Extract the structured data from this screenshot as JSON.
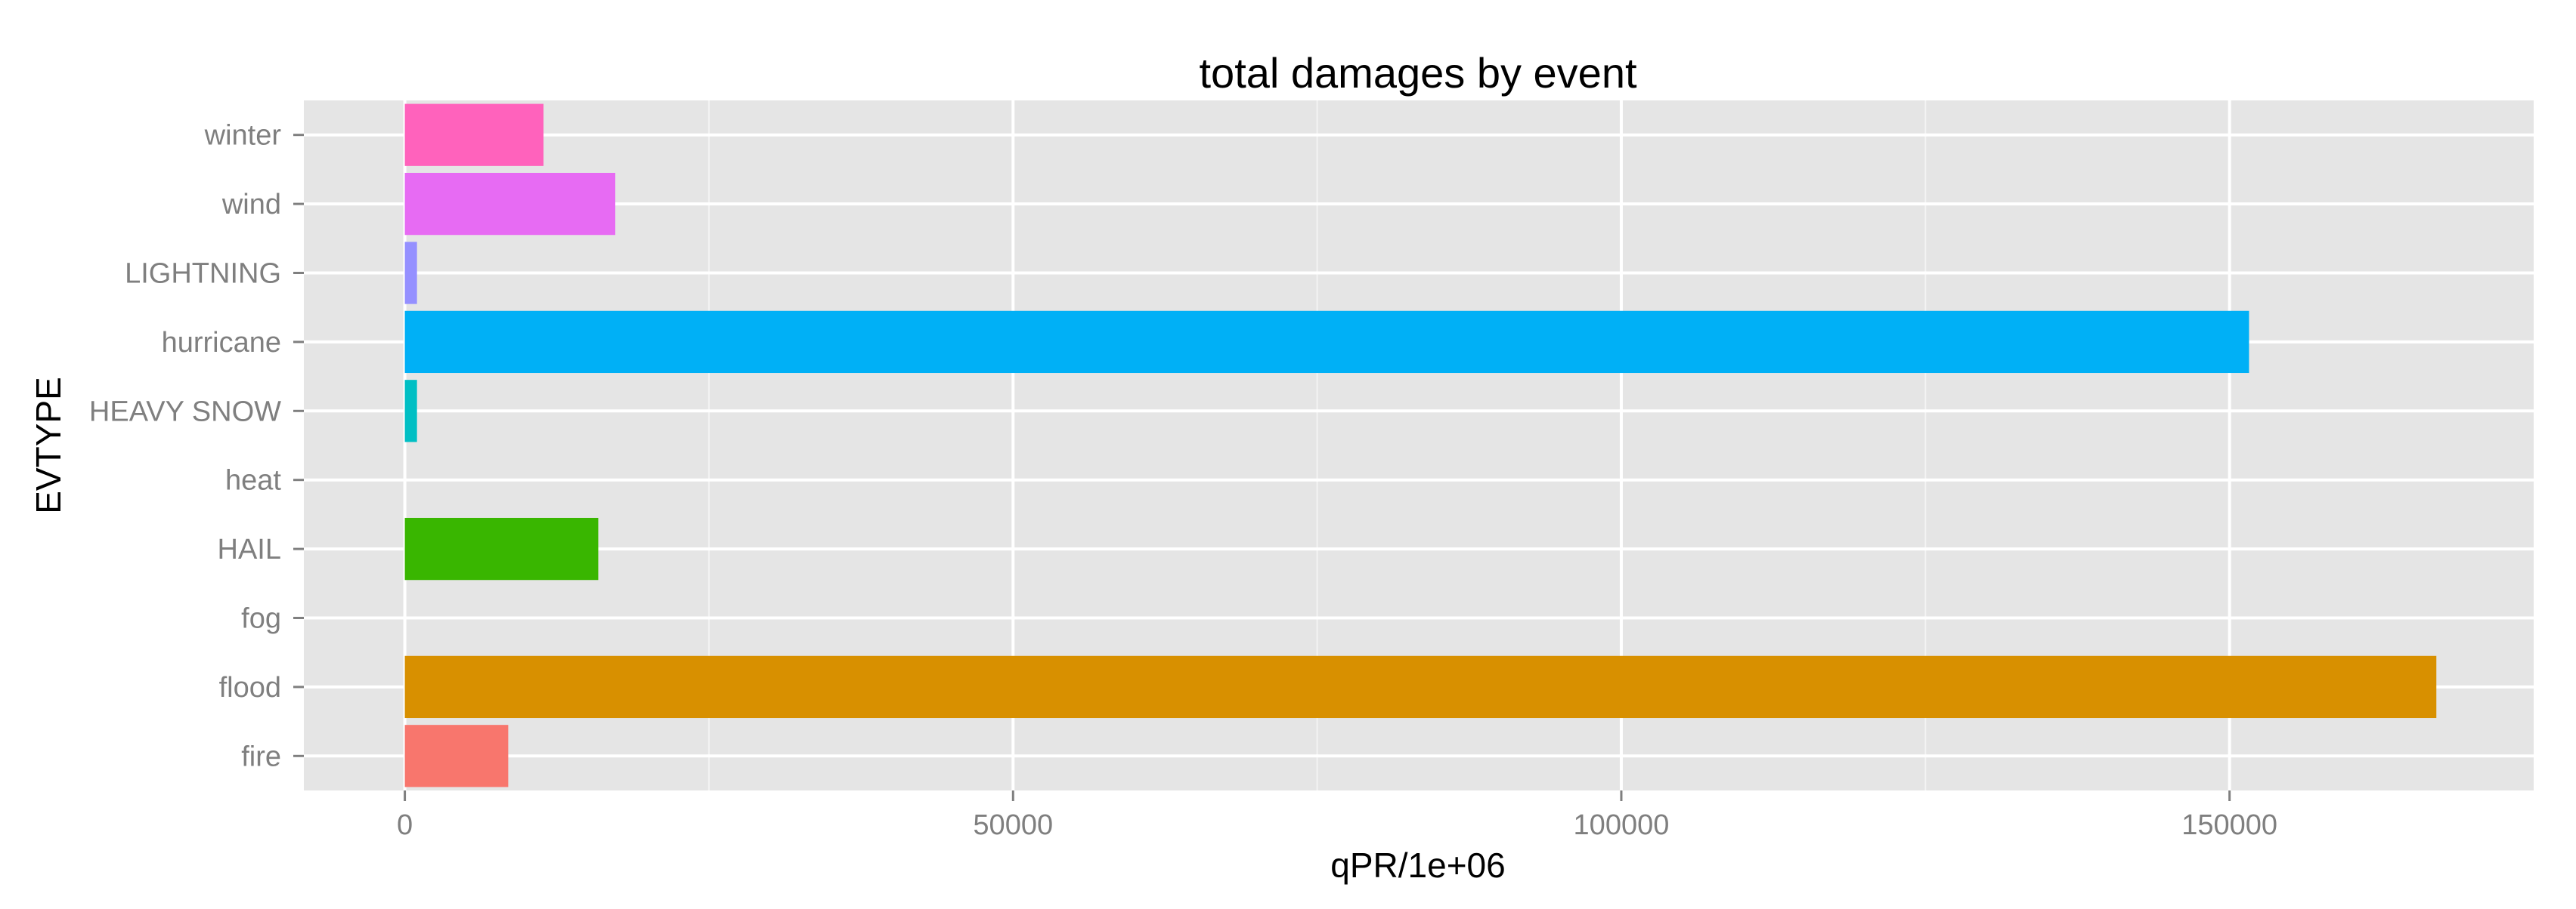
{
  "chart_data": {
    "type": "bar",
    "orientation": "horizontal",
    "title": "total damages by event",
    "xlabel": "qPR/1e+06",
    "ylabel": "EVTYPE",
    "categories": [
      "fire",
      "flood",
      "fog",
      "HAIL",
      "heat",
      "HEAVY SNOW",
      "hurricane",
      "LIGHTNING",
      "wind",
      "winter"
    ],
    "values": [
      8500,
      167000,
      0,
      15900,
      0,
      1000,
      151600,
      1000,
      17300,
      11400
    ],
    "colors": [
      "#F8766D",
      "#D89000",
      "#A3A500",
      "#39B600",
      "#00BF7D",
      "#00BFC4",
      "#00B0F6",
      "#9590FF",
      "#E76BF3",
      "#FF62BC"
    ],
    "xlim": [
      -8300,
      175000
    ],
    "xticks": [
      0,
      50000,
      100000,
      150000
    ],
    "xtick_labels": [
      "0",
      "50000",
      "100000",
      "150000"
    ],
    "grid": true,
    "panel_background": "#E5E5E5",
    "grid_color": "#FFFFFF"
  }
}
